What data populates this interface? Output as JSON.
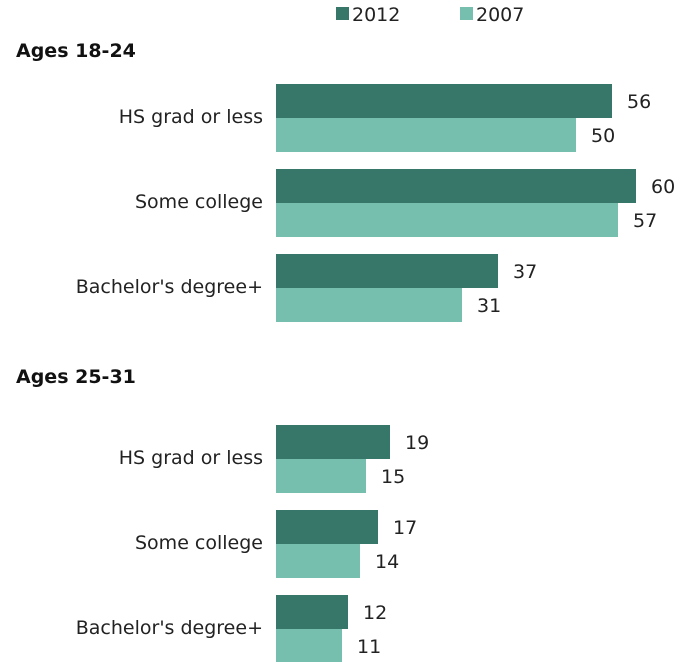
{
  "chart_data": {
    "type": "bar",
    "orientation": "horizontal",
    "legend": {
      "placement": "top-center"
    },
    "series": [
      {
        "name": "2012",
        "color": "#36776a"
      },
      {
        "name": "2007",
        "color": "#76bfae"
      }
    ],
    "groups": [
      {
        "title": "Ages 18-24",
        "categories": [
          "HS grad or less",
          "Some college",
          "Bachelor's degree+"
        ],
        "values": {
          "2012": [
            56,
            60,
            37
          ],
          "2007": [
            50,
            57,
            31
          ]
        }
      },
      {
        "title": "Ages 25-31",
        "categories": [
          "HS grad or less",
          "Some college",
          "Bachelor's degree+"
        ],
        "values": {
          "2012": [
            19,
            17,
            12
          ],
          "2007": [
            15,
            14,
            11
          ]
        }
      }
    ],
    "xlim": [
      0,
      60
    ],
    "grid": false,
    "axes_visible": false
  }
}
